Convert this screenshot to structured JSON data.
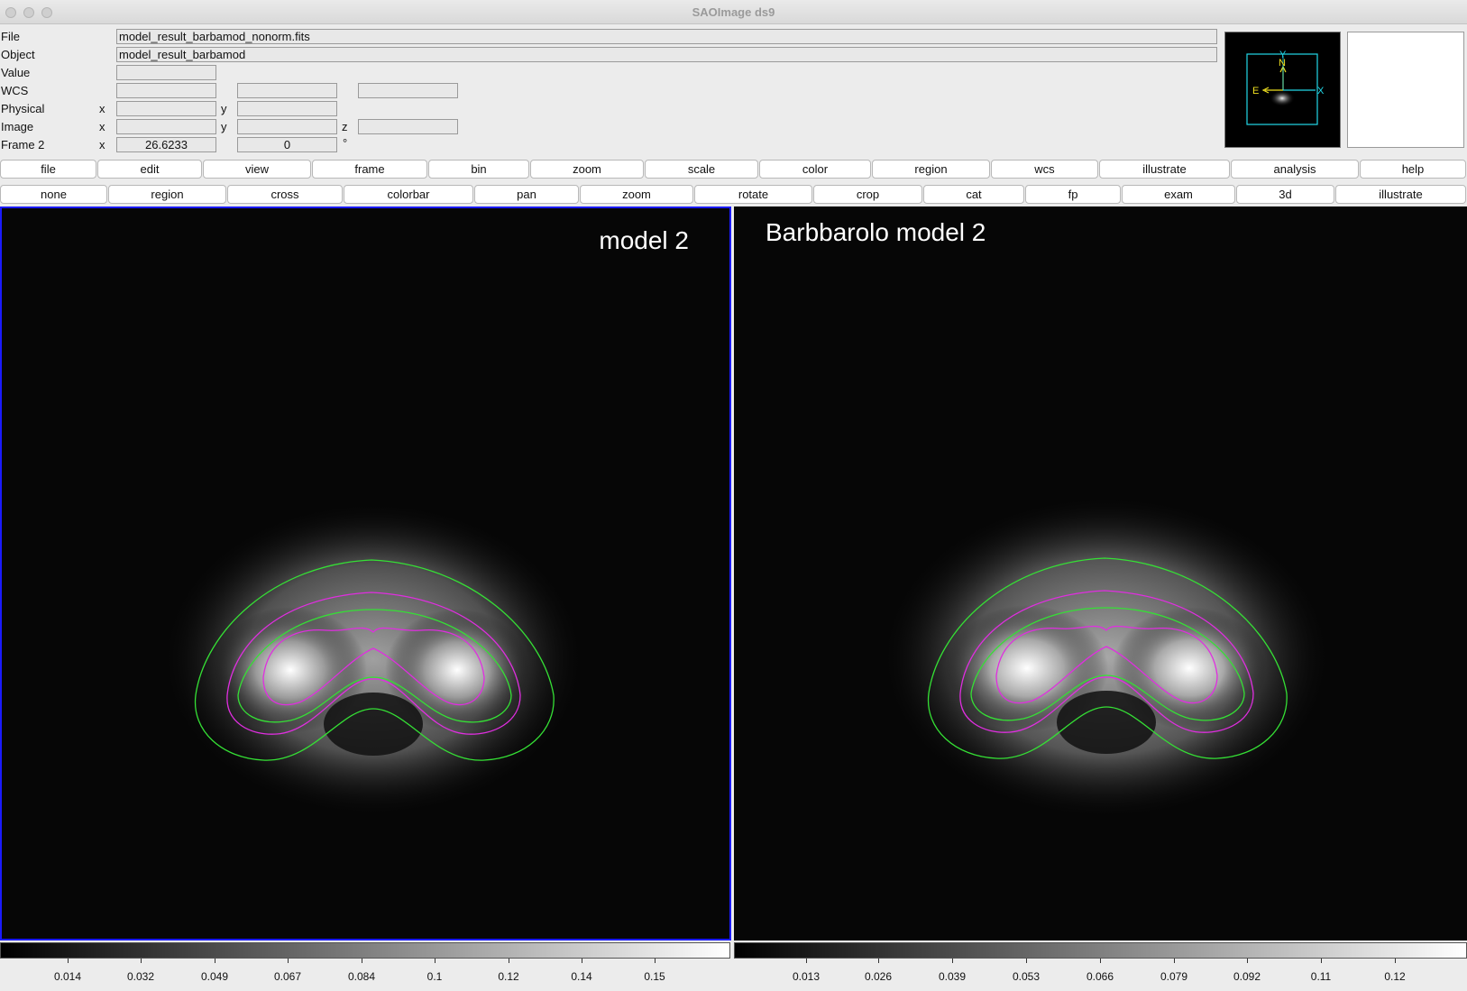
{
  "window": {
    "title": "SAOImage ds9"
  },
  "info": {
    "file_label": "File",
    "file_value": "model_result_barbamod_nonorm.fits",
    "object_label": "Object",
    "object_value": "model_result_barbamod",
    "value_label": "Value",
    "wcs_label": "WCS",
    "physical_label": "Physical",
    "image_label": "Image",
    "frame_label": "Frame 2",
    "x_label": "x",
    "y_label": "y",
    "z_label": "z",
    "frame_x_value": "26.6233",
    "frame_angle_value": "0",
    "degree_symbol": "°"
  },
  "panner": {
    "north": "N",
    "east": "E",
    "y_axis": "Y",
    "x_axis": "X"
  },
  "main_buttons": [
    "file",
    "edit",
    "view",
    "frame",
    "bin",
    "zoom",
    "scale",
    "color",
    "region",
    "wcs",
    "illustrate",
    "analysis",
    "help"
  ],
  "mode_buttons": [
    "none",
    "region",
    "cross",
    "colorbar",
    "pan",
    "zoom",
    "rotate",
    "crop",
    "cat",
    "fp",
    "exam",
    "3d",
    "illustrate"
  ],
  "frames": [
    {
      "label": "model 2",
      "colorbar_ticks": [
        "0.014",
        "0.032",
        "0.049",
        "0.067",
        "0.084",
        "0.1",
        "0.12",
        "0.14",
        "0.15"
      ]
    },
    {
      "label": "Barbbarolo model 2",
      "colorbar_ticks": [
        "0.013",
        "0.026",
        "0.039",
        "0.053",
        "0.066",
        "0.079",
        "0.092",
        "0.11",
        "0.12"
      ]
    }
  ],
  "colors": {
    "contour_outer": "#35e035",
    "contour_inner": "#e02ee0",
    "frame_highlight": "#1a1aff",
    "panner_box": "#22d8e8",
    "panner_axis": "#f0e020"
  }
}
